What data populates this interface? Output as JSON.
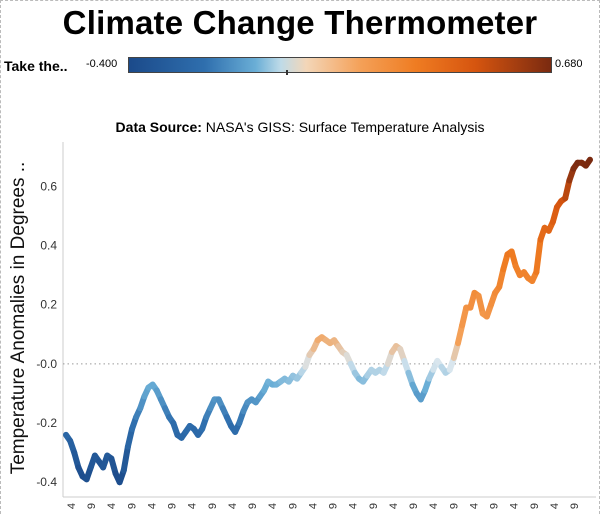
{
  "header": {
    "title": "Climate Change Thermometer"
  },
  "legend": {
    "label": "Take the..",
    "min_label": "-0.400",
    "max_label": "0.680"
  },
  "subtitle": {
    "bold": "Data Source:",
    "text": "NASA's GISS: Surface Temperature Analysis"
  },
  "colors": {
    "low": "#1b4a8a",
    "mid_cool": "#6aaed6",
    "neutral": "#d9e6ee",
    "mid_warm": "#f4a057",
    "high": "#7a2a10",
    "zero_line": "#9a9a9a",
    "axis": "#cccccc"
  },
  "chart_data": {
    "type": "line",
    "title": "Data Source: NASA's GISS: Surface Temperature Analysis",
    "ylabel": "Temperature Anomalies in Degrees ..",
    "xlabel": "",
    "ylim": [
      -0.45,
      0.75
    ],
    "yticks": [
      "0.6",
      "0.4",
      "0.2",
      "-0.0",
      "-0.2",
      "-0.4"
    ],
    "ytick_values": [
      0.6,
      0.4,
      0.2,
      0.0,
      -0.2,
      -0.4
    ],
    "xtick_labels": [
      "4",
      "9",
      "4",
      "9",
      "4",
      "9",
      "4",
      "9",
      "4",
      "9",
      "4",
      "9",
      "4",
      "9",
      "4",
      "9",
      "4",
      "9",
      "4",
      "9",
      "4",
      "9",
      "4",
      "9",
      "4",
      "9"
    ],
    "color_scale": [
      -0.4,
      0.68
    ],
    "reference_line": 0.0,
    "values": [
      -0.24,
      -0.26,
      -0.3,
      -0.35,
      -0.38,
      -0.39,
      -0.35,
      -0.31,
      -0.33,
      -0.35,
      -0.31,
      -0.32,
      -0.37,
      -0.4,
      -0.36,
      -0.28,
      -0.22,
      -0.18,
      -0.15,
      -0.11,
      -0.08,
      -0.07,
      -0.09,
      -0.12,
      -0.15,
      -0.18,
      -0.2,
      -0.24,
      -0.25,
      -0.23,
      -0.21,
      -0.22,
      -0.24,
      -0.22,
      -0.18,
      -0.15,
      -0.12,
      -0.12,
      -0.15,
      -0.18,
      -0.21,
      -0.23,
      -0.2,
      -0.16,
      -0.13,
      -0.12,
      -0.13,
      -0.11,
      -0.09,
      -0.06,
      -0.07,
      -0.07,
      -0.06,
      -0.05,
      -0.06,
      -0.04,
      -0.05,
      -0.03,
      -0.01,
      0.03,
      0.05,
      0.08,
      0.09,
      0.08,
      0.07,
      0.08,
      0.06,
      0.04,
      0.03,
      0.0,
      -0.03,
      -0.05,
      -0.06,
      -0.04,
      -0.02,
      -0.03,
      -0.02,
      -0.03,
      0.0,
      0.04,
      0.06,
      0.05,
      0.01,
      -0.03,
      -0.07,
      -0.1,
      -0.12,
      -0.09,
      -0.05,
      -0.02,
      0.01,
      -0.01,
      -0.03,
      -0.02,
      0.02,
      0.07,
      0.13,
      0.19,
      0.19,
      0.24,
      0.23,
      0.17,
      0.16,
      0.2,
      0.24,
      0.26,
      0.32,
      0.37,
      0.38,
      0.33,
      0.3,
      0.31,
      0.29,
      0.28,
      0.31,
      0.42,
      0.46,
      0.45,
      0.48,
      0.53,
      0.55,
      0.56,
      0.62,
      0.66,
      0.68,
      0.68,
      0.67,
      0.69
    ]
  }
}
